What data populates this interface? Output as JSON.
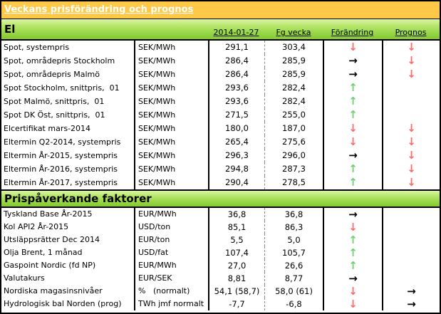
{
  "title": "Veckans prisförändring och prognos",
  "colors": {
    "title_bg": "#FFC846",
    "title_text": "#FFFFFF",
    "section_gradient_top": "#DCF5A6",
    "section_gradient_bottom": "#84C930",
    "arrow_up": "#6FD06F",
    "arrow_down": "#FF6A6A",
    "arrow_flat": "#000000",
    "border": "#000000"
  },
  "arrow_glyphs": {
    "up": "↑",
    "down": "↓",
    "flat": "→"
  },
  "columns": {
    "date": "2014-01-27",
    "prev_week": "Fg vecka",
    "change": "Förändring",
    "forecast": "Prognos"
  },
  "sections": [
    {
      "name": "El",
      "show_column_headers": true,
      "rows": [
        {
          "label": "Spot, systempris",
          "unit": "SEK/MWh",
          "current": "291,1",
          "previous": "303,4",
          "change": "down",
          "forecast": "down"
        },
        {
          "label": "Spot, områdepris Stockholm",
          "unit": "SEK/MWh",
          "current": "286,4",
          "previous": "285,9",
          "change": "flat",
          "forecast": "down"
        },
        {
          "label": "Spot, områdepris Malmö",
          "unit": "SEK/MWh",
          "current": "286,4",
          "previous": "285,9",
          "change": "flat",
          "forecast": "down"
        },
        {
          "label": "Spot Stockholm, snittpris,  01",
          "unit": "SEK/MWh",
          "current": "293,6",
          "previous": "282,4",
          "change": "up",
          "forecast": ""
        },
        {
          "label": "Spot Malmö, snittpris,  01",
          "unit": "SEK/MWh",
          "current": "293,6",
          "previous": "282,4",
          "change": "up",
          "forecast": ""
        },
        {
          "label": "Spot DK Öst, snittpris,  01",
          "unit": "SEK/MWh",
          "current": "271,5",
          "previous": "255,0",
          "change": "up",
          "forecast": ""
        },
        {
          "label": "Elcertifikat mars-2014",
          "unit": "SEK/MWh",
          "current": "180,0",
          "previous": "187,0",
          "change": "down",
          "forecast": "down"
        },
        {
          "label": "Eltermin Q2-2014, systempris",
          "unit": "SEK/MWh",
          "current": "265,4",
          "previous": "275,6",
          "change": "down",
          "forecast": "down"
        },
        {
          "label": "Eltermin År-2015, systempris",
          "unit": "SEK/MWh",
          "current": "296,3",
          "previous": "296,0",
          "change": "flat",
          "forecast": "down"
        },
        {
          "label": "Eltermin År-2016, systempris",
          "unit": "SEK/MWh",
          "current": "294,8",
          "previous": "287,3",
          "change": "up",
          "forecast": "down"
        },
        {
          "label": "Eltermin År-2017, systempris",
          "unit": "SEK/MWh",
          "current": "290,4",
          "previous": "278,5",
          "change": "up",
          "forecast": "down"
        }
      ]
    },
    {
      "name": "Prispåverkande faktorer",
      "show_column_headers": false,
      "rows": [
        {
          "label": "Tyskland Base År-2015",
          "unit": "EUR/MWh",
          "current": "36,8",
          "previous": "36,8",
          "change": "flat",
          "forecast": ""
        },
        {
          "label": "Kol API2 År-2015",
          "unit": "USD/ton",
          "current": "85,1",
          "previous": "86,3",
          "change": "down",
          "forecast": ""
        },
        {
          "label": "Utsläppsrätter Dec 2014",
          "unit": "EUR/ton",
          "current": "5,5",
          "previous": "5,0",
          "change": "up",
          "forecast": ""
        },
        {
          "label": "Olja Brent, 1 månad",
          "unit": "USD/fat",
          "current": "107,4",
          "previous": "105,7",
          "change": "up",
          "forecast": ""
        },
        {
          "label": "Gaspoint Nordic (fd NP)",
          "unit": "EUR/MWh",
          "current": "27,0",
          "previous": "26,6",
          "change": "up",
          "forecast": ""
        },
        {
          "label": "Valutakurs",
          "unit": "EUR/SEK",
          "current": "8,81",
          "previous": "8,77",
          "change": "flat",
          "forecast": ""
        },
        {
          "label": "Nordiska magasinsnivåer",
          "unit": "%   (normalt)",
          "current": "54,1 (58,7)",
          "previous": "58,0 (61)",
          "change": "down",
          "forecast": "flat"
        },
        {
          "label": "Hydrologisk bal Norden (prog)",
          "unit": "TWh jmf normalt",
          "current": "-7,7",
          "previous": "-6,8",
          "change": "down",
          "forecast": "flat"
        }
      ]
    }
  ]
}
